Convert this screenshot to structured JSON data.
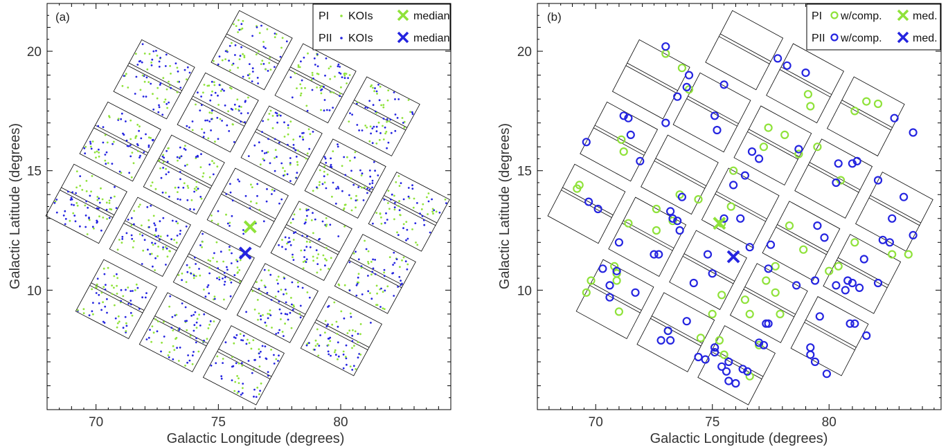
{
  "chart_data": [
    {
      "type": "scatter",
      "panel_label": "(a)",
      "xlabel": "Galactic Longitude (degrees)",
      "ylabel": "Galactic Latitude (degrees)",
      "xlim": [
        68,
        84.5
      ],
      "ylim": [
        5,
        22
      ],
      "xticks": [
        70,
        75,
        80
      ],
      "yticks": [
        10,
        15,
        20
      ],
      "grid": false,
      "legend_placement": "top-right",
      "colors": {
        "PI": "#8fe23a",
        "PII": "#2424e0"
      },
      "legend": {
        "PI": "PI",
        "PII": "PII",
        "koi": "KOIs",
        "median": "median"
      },
      "medians": {
        "PI": {
          "x": 76.3,
          "y": 12.65
        },
        "PII": {
          "x": 76.1,
          "y": 11.55
        }
      },
      "series": [
        {
          "name": "PI KOIs",
          "marker": "dot",
          "color": "#8fe23a",
          "points": "dense random distribution of KOI positions across all CCD modules"
        },
        {
          "name": "PII KOIs",
          "marker": "dot",
          "color": "#2424e0",
          "points": "dense random distribution of KOI positions across all CCD modules"
        }
      ]
    },
    {
      "type": "scatter",
      "panel_label": "(b)",
      "xlabel": "Galactic Longitude (degrees)",
      "ylabel": "Galactic Latitude (degrees)",
      "xlim": [
        67.5,
        84.8
      ],
      "ylim": [
        5,
        22
      ],
      "xticks": [
        70,
        75,
        80
      ],
      "yticks": [
        10,
        15,
        20
      ],
      "grid": false,
      "legend_placement": "top-right",
      "colors": {
        "PI": "#8fe23a",
        "PII": "#2424e0"
      },
      "legend": {
        "PI": "PI",
        "PII": "PII",
        "comp": "w/comp.",
        "median": "med."
      },
      "medians": {
        "PI": {
          "x": 75.3,
          "y": 12.8
        },
        "PII": {
          "x": 75.9,
          "y": 11.4
        }
      },
      "series": [
        {
          "name": "PI w/comp.",
          "marker": "ring",
          "color": "#8fe23a",
          "points": [
            [
              69.3,
              14.4
            ],
            [
              69.2,
              14.25
            ],
            [
              69.8,
              10.4
            ],
            [
              69.6,
              9.9
            ],
            [
              70.8,
              11.0
            ],
            [
              70.9,
              10.7
            ],
            [
              70.9,
              10.4
            ],
            [
              71.0,
              9.1
            ],
            [
              71.1,
              16.3
            ],
            [
              71.2,
              15.8
            ],
            [
              71.4,
              12.8
            ],
            [
              72.6,
              13.4
            ],
            [
              72.6,
              12.5
            ],
            [
              73.0,
              19.9
            ],
            [
              73.3,
              12.9
            ],
            [
              73.1,
              8.3
            ],
            [
              73.7,
              19.3
            ],
            [
              74.0,
              18.4
            ],
            [
              73.6,
              14.0
            ],
            [
              74.4,
              13.8
            ],
            [
              74.5,
              8.0
            ],
            [
              75.0,
              9.0
            ],
            [
              75.4,
              9.8
            ],
            [
              75.4,
              12.8
            ],
            [
              75.3,
              7.9
            ],
            [
              75.5,
              7.3
            ],
            [
              75.9,
              15.0
            ],
            [
              75.8,
              13.5
            ],
            [
              76.4,
              9.6
            ],
            [
              76.6,
              9.0
            ],
            [
              76.6,
              6.4
            ],
            [
              77.0,
              7.7
            ],
            [
              77.2,
              16.0
            ],
            [
              77.3,
              10.4
            ],
            [
              77.4,
              16.8
            ],
            [
              77.7,
              9.9
            ],
            [
              77.7,
              11.0
            ],
            [
              77.9,
              9.0
            ],
            [
              78.1,
              16.5
            ],
            [
              78.3,
              12.7
            ],
            [
              78.7,
              15.7
            ],
            [
              78.9,
              11.7
            ],
            [
              79.1,
              18.2
            ],
            [
              79.2,
              17.7
            ],
            [
              79.5,
              16.0
            ],
            [
              80.0,
              10.8
            ],
            [
              80.4,
              11.0
            ],
            [
              80.5,
              14.6
            ],
            [
              81.1,
              12.0
            ],
            [
              81.1,
              17.5
            ],
            [
              81.6,
              17.9
            ],
            [
              82.1,
              17.8
            ],
            [
              82.7,
              11.5
            ],
            [
              83.4,
              11.5
            ]
          ]
        },
        {
          "name": "PII w/comp.",
          "marker": "ring",
          "color": "#2424e0",
          "points": [
            [
              69.6,
              16.2
            ],
            [
              69.7,
              13.7
            ],
            [
              70.1,
              13.4
            ],
            [
              70.3,
              10.9
            ],
            [
              70.6,
              10.2
            ],
            [
              70.6,
              9.7
            ],
            [
              70.9,
              10.8
            ],
            [
              71.0,
              12.0
            ],
            [
              71.2,
              17.3
            ],
            [
              71.4,
              17.2
            ],
            [
              71.5,
              16.5
            ],
            [
              71.7,
              9.9
            ],
            [
              71.9,
              15.4
            ],
            [
              72.5,
              11.5
            ],
            [
              72.7,
              11.5
            ],
            [
              72.8,
              7.9
            ],
            [
              73.0,
              17.0
            ],
            [
              73.1,
              8.3
            ],
            [
              73.2,
              7.9
            ],
            [
              73.2,
              13.3
            ],
            [
              73.3,
              13.0
            ],
            [
              73.5,
              12.9
            ],
            [
              73.6,
              12.5
            ],
            [
              73.7,
              13.9
            ],
            [
              73.9,
              8.7
            ],
            [
              74.0,
              19.0
            ],
            [
              74.2,
              10.3
            ],
            [
              74.4,
              7.2
            ],
            [
              74.7,
              7.1
            ],
            [
              74.8,
              11.5
            ],
            [
              75.1,
              7.6
            ],
            [
              75.0,
              10.7
            ],
            [
              75.1,
              7.4
            ],
            [
              75.1,
              17.3
            ],
            [
              75.2,
              16.7
            ],
            [
              75.4,
              6.8
            ],
            [
              75.5,
              13.0
            ],
            [
              75.5,
              18.6
            ],
            [
              75.6,
              6.6
            ],
            [
              75.7,
              7.0
            ],
            [
              75.7,
              6.2
            ],
            [
              75.9,
              14.4
            ],
            [
              76.0,
              6.1
            ],
            [
              76.2,
              13.0
            ],
            [
              76.3,
              6.7
            ],
            [
              76.5,
              6.6
            ],
            [
              76.6,
              11.8
            ],
            [
              76.4,
              14.8
            ],
            [
              76.7,
              15.8
            ],
            [
              77.0,
              7.8
            ],
            [
              77.2,
              7.7
            ],
            [
              77.3,
              8.6
            ],
            [
              77.4,
              8.6
            ],
            [
              77.0,
              15.5
            ],
            [
              77.4,
              10.9
            ],
            [
              77.5,
              11.9
            ],
            [
              77.8,
              19.7
            ],
            [
              78.2,
              19.4
            ],
            [
              78.6,
              10.2
            ],
            [
              78.7,
              15.9
            ],
            [
              79.2,
              7.6
            ],
            [
              79.2,
              7.3
            ],
            [
              79.4,
              7.0
            ],
            [
              79.0,
              19.1
            ],
            [
              79.4,
              10.4
            ],
            [
              79.5,
              12.7
            ],
            [
              79.6,
              8.9
            ],
            [
              79.8,
              12.2
            ],
            [
              79.9,
              6.5
            ],
            [
              80.3,
              10.2
            ],
            [
              80.3,
              14.5
            ],
            [
              80.4,
              15.3
            ],
            [
              80.7,
              10.0
            ],
            [
              80.8,
              10.4
            ],
            [
              81.0,
              15.3
            ],
            [
              81.0,
              10.3
            ],
            [
              81.2,
              15.4
            ],
            [
              80.9,
              8.6
            ],
            [
              81.1,
              8.6
            ],
            [
              81.3,
              10.1
            ],
            [
              81.5,
              11.3
            ],
            [
              81.6,
              8.1
            ],
            [
              82.1,
              14.6
            ],
            [
              82.1,
              10.3
            ],
            [
              82.3,
              12.1
            ],
            [
              82.6,
              12.0
            ],
            [
              82.7,
              13.0
            ],
            [
              82.8,
              17.2
            ],
            [
              83.2,
              13.9
            ],
            [
              83.6,
              12.3
            ],
            [
              83.6,
              16.6
            ],
            [
              73.0,
              20.2
            ],
            [
              73.5,
              18.1
            ],
            [
              73.9,
              18.5
            ]
          ]
        }
      ]
    }
  ]
}
